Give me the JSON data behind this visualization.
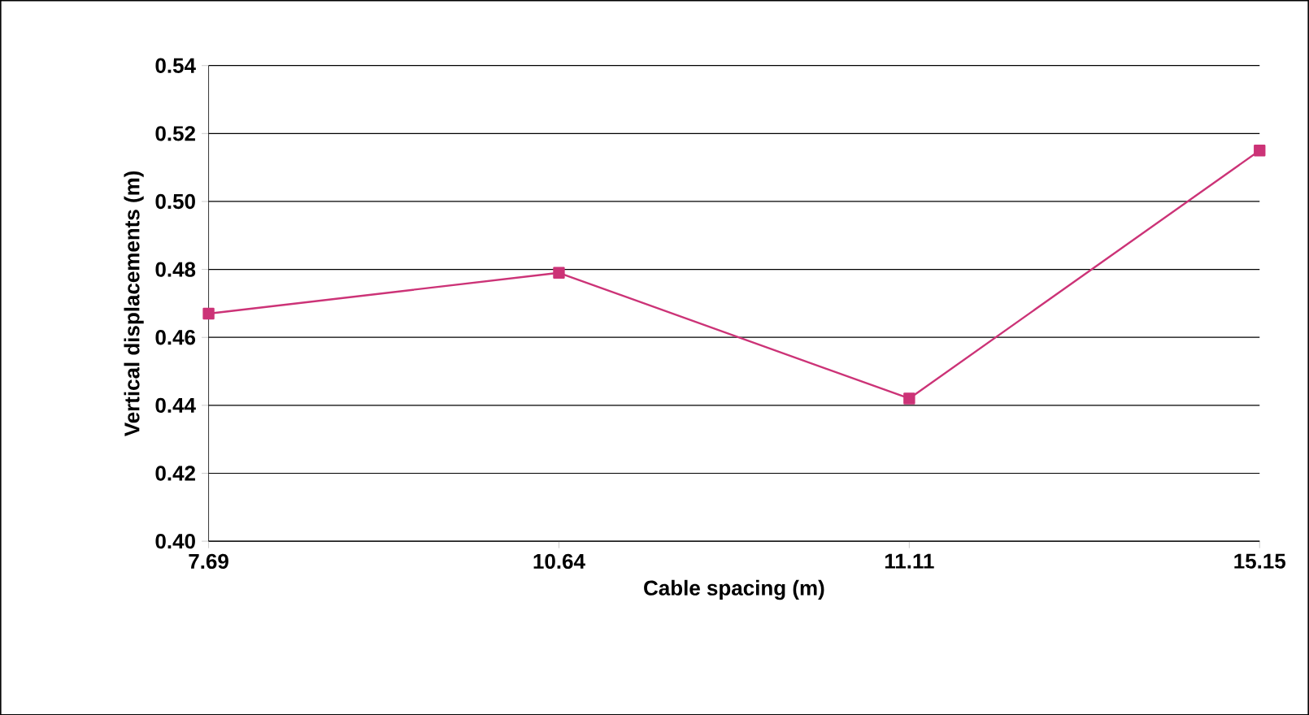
{
  "chart_data": {
    "type": "line",
    "xlabel": "Cable spacing (m)",
    "ylabel": "Vertical displacements (m)",
    "categories": [
      "7.69",
      "10.64",
      "11.11",
      "15.15"
    ],
    "series": [
      {
        "color": "#cc3377",
        "values": [
          0.467,
          0.479,
          0.442,
          0.515
        ]
      }
    ],
    "ylim": [
      0.4,
      0.54
    ],
    "yticks": [
      {
        "value": 0.4,
        "label": "0.40"
      },
      {
        "value": 0.42,
        "label": "0.42"
      },
      {
        "value": 0.44,
        "label": "0.44"
      },
      {
        "value": 0.46,
        "label": "0.46"
      },
      {
        "value": 0.48,
        "label": "0.48"
      },
      {
        "value": 0.5,
        "label": "0.50"
      },
      {
        "value": 0.52,
        "label": "0.52"
      },
      {
        "value": 0.54,
        "label": "0.54"
      }
    ],
    "grid": "y",
    "marker": "square",
    "line_style": "solid"
  }
}
